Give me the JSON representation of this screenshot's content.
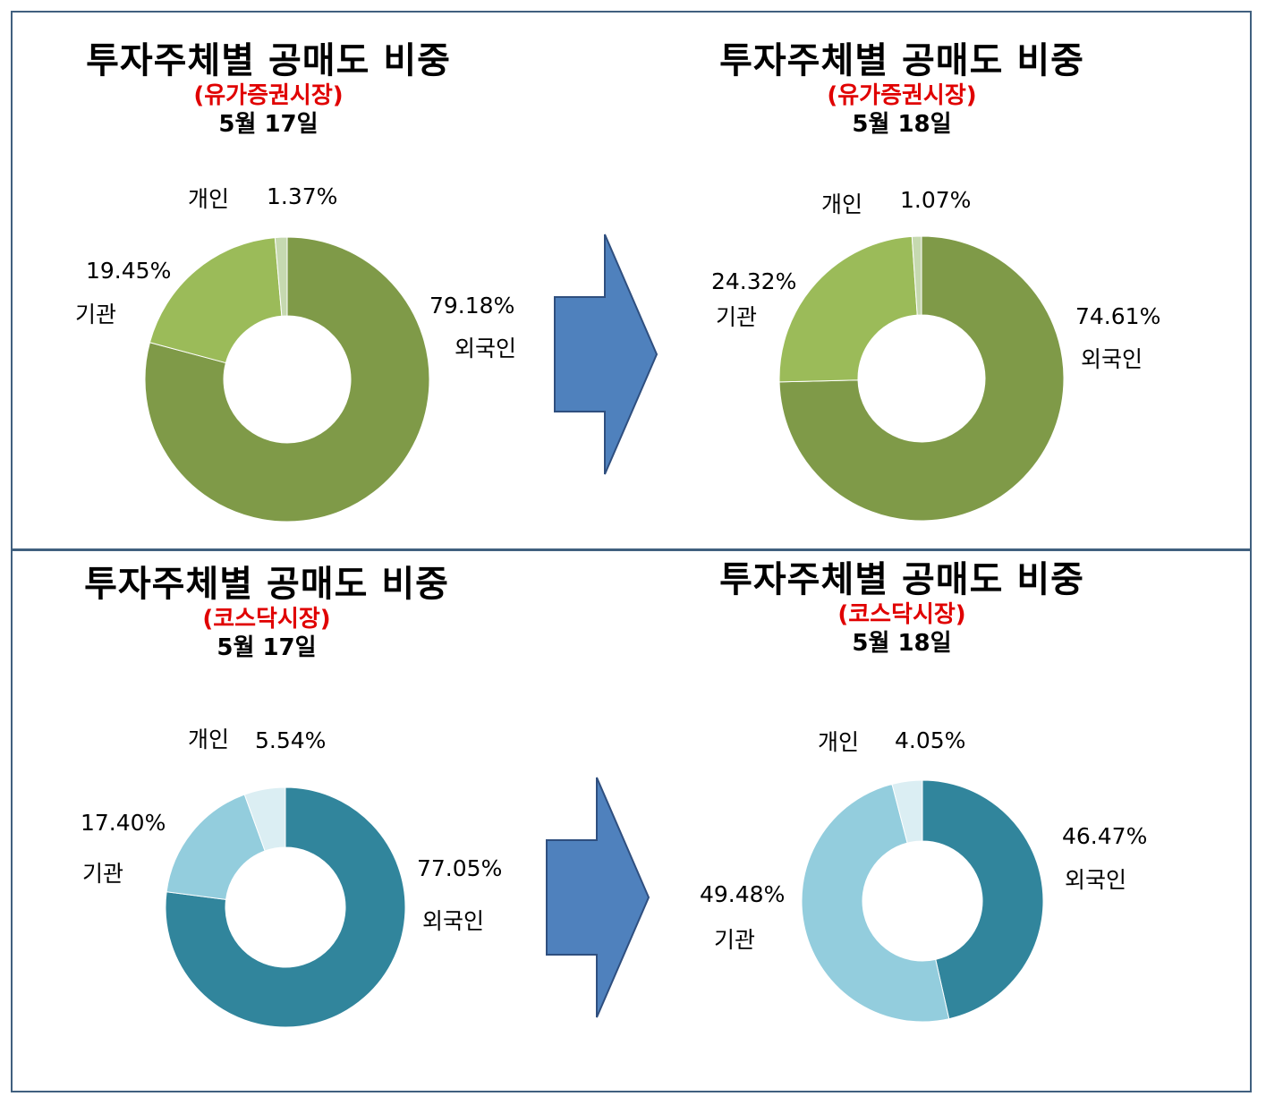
{
  "colors": {
    "border": "#40607f",
    "arrow": "#4f81bd",
    "arrow_stroke": "#2f4f7f",
    "kospi": {
      "외국인": "#7f9a48",
      "기관": "#9bbb59",
      "개인": "#c6d9b0"
    },
    "kosdaq": {
      "외국인": "#31859c",
      "기관": "#93cddd",
      "개인": "#dbeef3"
    }
  },
  "chart_data": [
    {
      "type": "pie",
      "title": "투자주체별 공매도 비중",
      "market": "(유가증권시장)",
      "date": "5월 17일",
      "slices": [
        {
          "name": "외국인",
          "value": 79.18,
          "label": "79.18%"
        },
        {
          "name": "기관",
          "value": 19.45,
          "label": "19.45%"
        },
        {
          "name": "개인",
          "value": 1.37,
          "label": "1.37%"
        }
      ]
    },
    {
      "type": "pie",
      "title": "투자주체별 공매도 비중",
      "market": "(유가증권시장)",
      "date": "5월 18일",
      "slices": [
        {
          "name": "외국인",
          "value": 74.61,
          "label": "74.61%"
        },
        {
          "name": "기관",
          "value": 24.32,
          "label": "24.32%"
        },
        {
          "name": "개인",
          "value": 1.07,
          "label": "1.07%"
        }
      ]
    },
    {
      "type": "pie",
      "title": "투자주체별 공매도 비중",
      "market": "(코스닥시장)",
      "date": "5월 17일",
      "slices": [
        {
          "name": "외국인",
          "value": 77.05,
          "label": "77.05%"
        },
        {
          "name": "기관",
          "value": 17.4,
          "label": "17.40%"
        },
        {
          "name": "개인",
          "value": 5.54,
          "label": "5.54%"
        }
      ]
    },
    {
      "type": "pie",
      "title": "투자주체별 공매도 비중",
      "market": "(코스닥시장)",
      "date": "5월 18일",
      "slices": [
        {
          "name": "외국인",
          "value": 46.47,
          "label": "46.47%"
        },
        {
          "name": "기관",
          "value": 49.48,
          "label": "49.48%"
        },
        {
          "name": "개인",
          "value": 4.05,
          "label": "4.05%"
        }
      ]
    }
  ]
}
